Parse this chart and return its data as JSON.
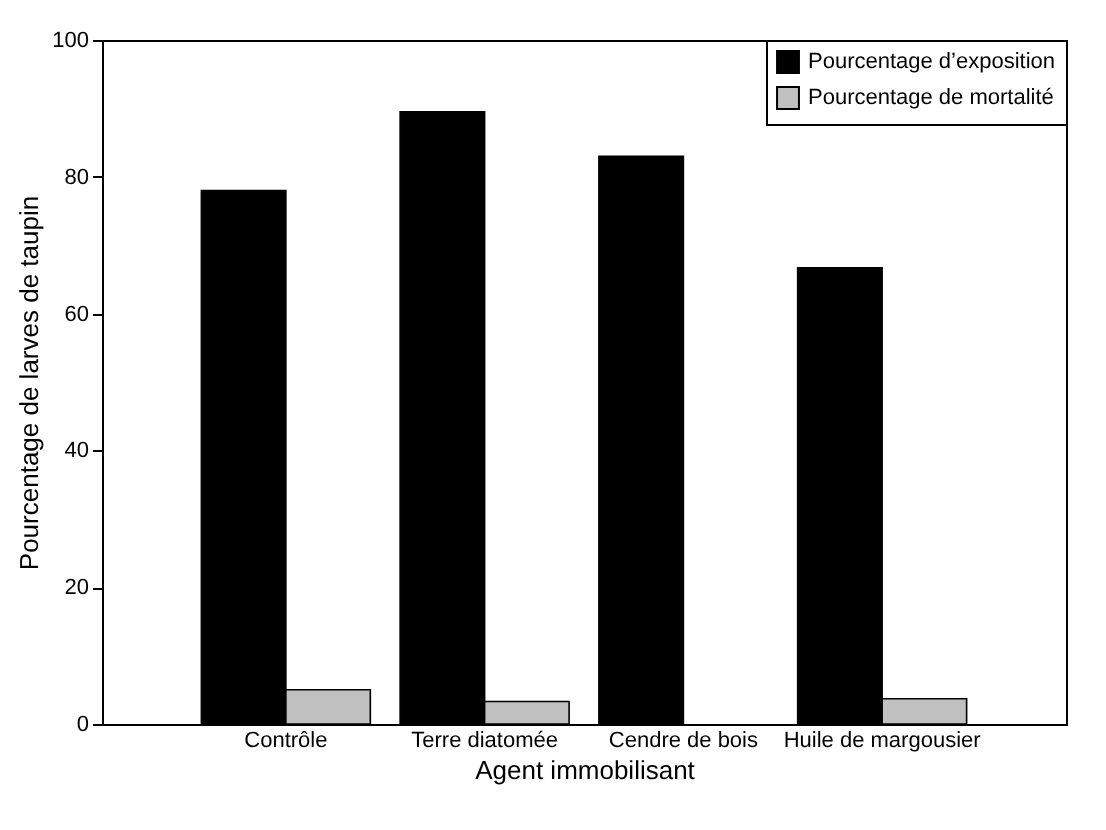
{
  "chart_data": {
    "type": "bar",
    "xlabel": "Agent immobilisant",
    "ylabel": "Pourcentage de larves de taupin",
    "categories": [
      "Contrôle",
      "Terre diatomée",
      "Cendre de bois",
      "Huile de margousier"
    ],
    "series": [
      {
        "name": "Pourcentage d’exposition",
        "color": "#000000",
        "values": [
          78,
          89.5,
          83,
          66.7
        ]
      },
      {
        "name": "Pourcentage de mortalité",
        "color": "#c0c0c0",
        "values": [
          5,
          3.3,
          null,
          3.7
        ]
      }
    ],
    "ylim": [
      0,
      100
    ],
    "yticks": [
      0,
      20,
      40,
      60,
      80,
      100
    ],
    "grid": false,
    "legend": "top right"
  }
}
